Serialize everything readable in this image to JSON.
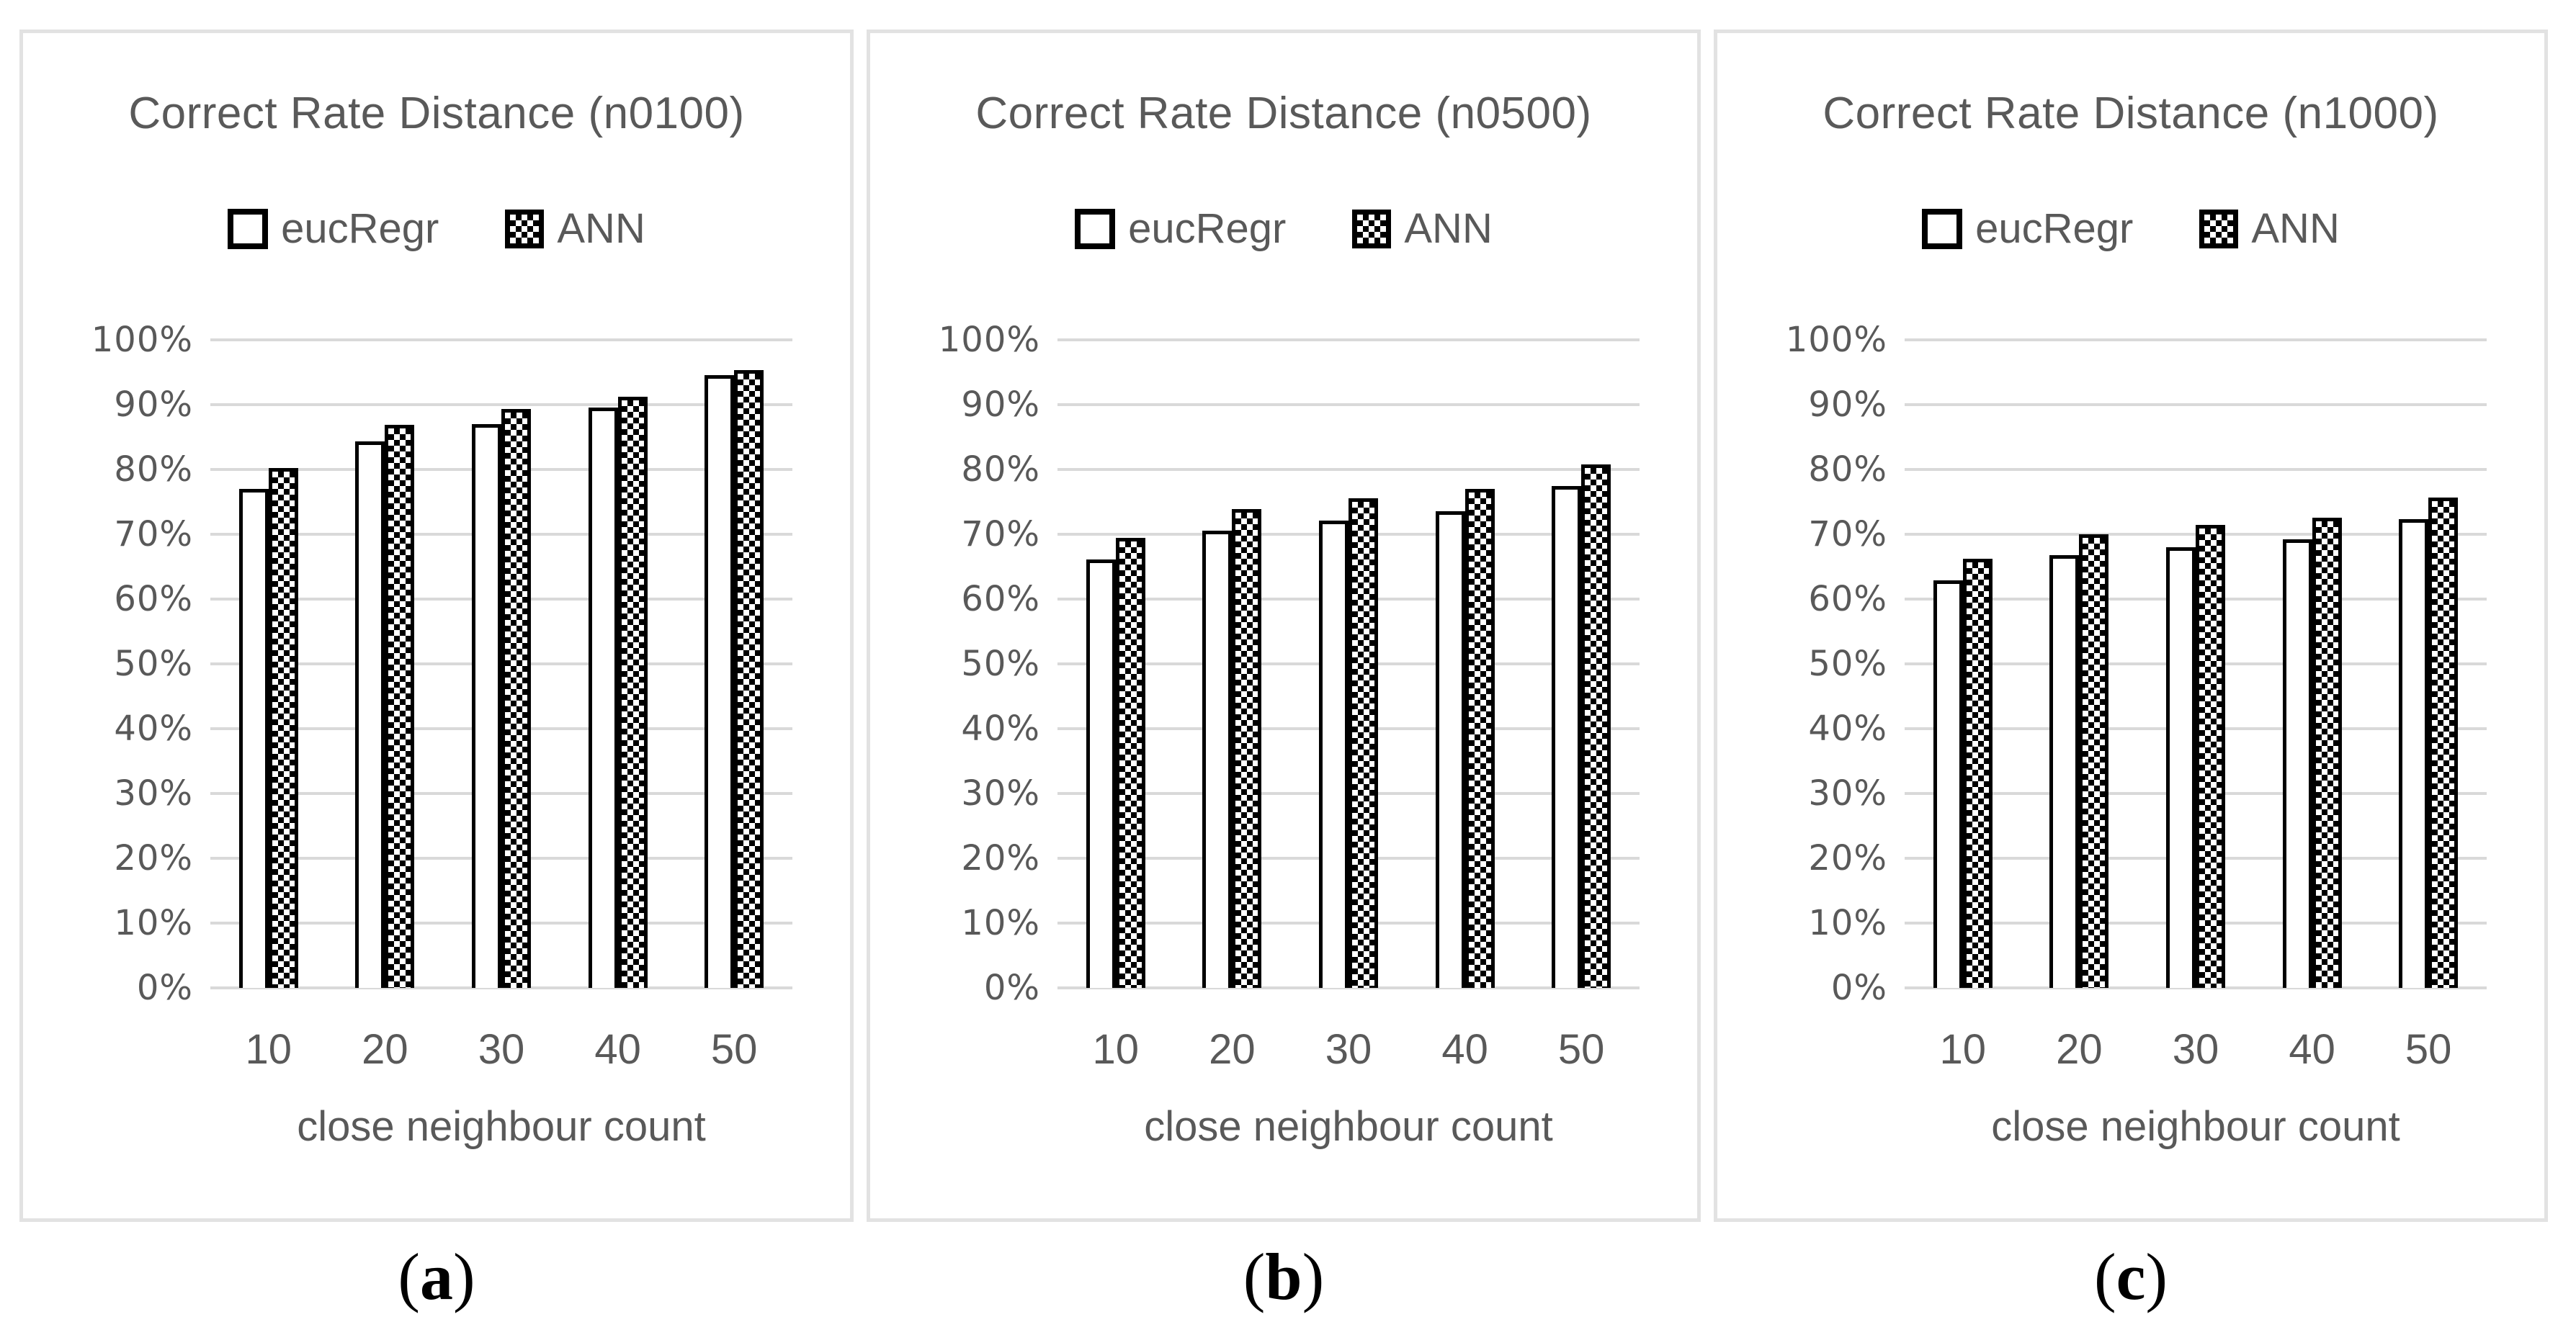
{
  "axis": {
    "x_title": "close neighbour count",
    "y_tick_labels": [
      "0%",
      "10%",
      "20%",
      "30%",
      "40%",
      "50%",
      "60%",
      "70%",
      "80%",
      "90%",
      "100%"
    ],
    "ylim": [
      0,
      100
    ],
    "grid": true
  },
  "legend": {
    "position": "top",
    "items": [
      {
        "label": "eucRegr",
        "fill": "white"
      },
      {
        "label": "ANN",
        "fill": "checker"
      }
    ]
  },
  "colors": {
    "text": "#595959",
    "grid": "#d9d9d9",
    "panel_border": "#e2e2e2",
    "bar_border": "#000000",
    "bar_fill_eucregr": "#ffffff",
    "bar_fill_ann": "black-white-checker",
    "caption": "#000000"
  },
  "chart_data": [
    {
      "type": "bar",
      "title": "Correct Rate Distance (n0100)",
      "caption": {
        "open": "(",
        "letter": "a",
        "close": ")"
      },
      "categories": [
        "10",
        "20",
        "30",
        "40",
        "50"
      ],
      "xlabel": "close neighbour count",
      "ylabel": "",
      "ylim": [
        0,
        100
      ],
      "y_unit": "%",
      "legend_position": "top",
      "series": [
        {
          "name": "eucRegr",
          "values": [
            77.0,
            84.3,
            87.0,
            89.6,
            94.6
          ]
        },
        {
          "name": "ANN",
          "values": [
            80.2,
            86.9,
            89.3,
            91.2,
            95.3
          ]
        }
      ]
    },
    {
      "type": "bar",
      "title": "Correct Rate Distance (n0500)",
      "caption": {
        "open": "(",
        "letter": "b",
        "close": ")"
      },
      "categories": [
        "10",
        "20",
        "30",
        "40",
        "50"
      ],
      "xlabel": "close neighbour count",
      "ylabel": "",
      "ylim": [
        0,
        100
      ],
      "y_unit": "%",
      "legend_position": "top",
      "series": [
        {
          "name": "eucRegr",
          "values": [
            66.1,
            70.5,
            72.1,
            73.5,
            77.4
          ]
        },
        {
          "name": "ANN",
          "values": [
            69.4,
            73.9,
            75.6,
            77.0,
            80.8
          ]
        }
      ]
    },
    {
      "type": "bar",
      "title": "Correct Rate Distance (n1000)",
      "caption": {
        "open": "(",
        "letter": "c",
        "close": ")"
      },
      "categories": [
        "10",
        "20",
        "30",
        "40",
        "50"
      ],
      "xlabel": "close neighbour count",
      "ylabel": "",
      "ylim": [
        0,
        100
      ],
      "y_unit": "%",
      "legend_position": "top",
      "series": [
        {
          "name": "eucRegr",
          "values": [
            62.9,
            66.8,
            68.0,
            69.2,
            72.3
          ]
        },
        {
          "name": "ANN",
          "values": [
            66.2,
            70.0,
            71.4,
            72.6,
            75.7
          ]
        }
      ]
    }
  ]
}
